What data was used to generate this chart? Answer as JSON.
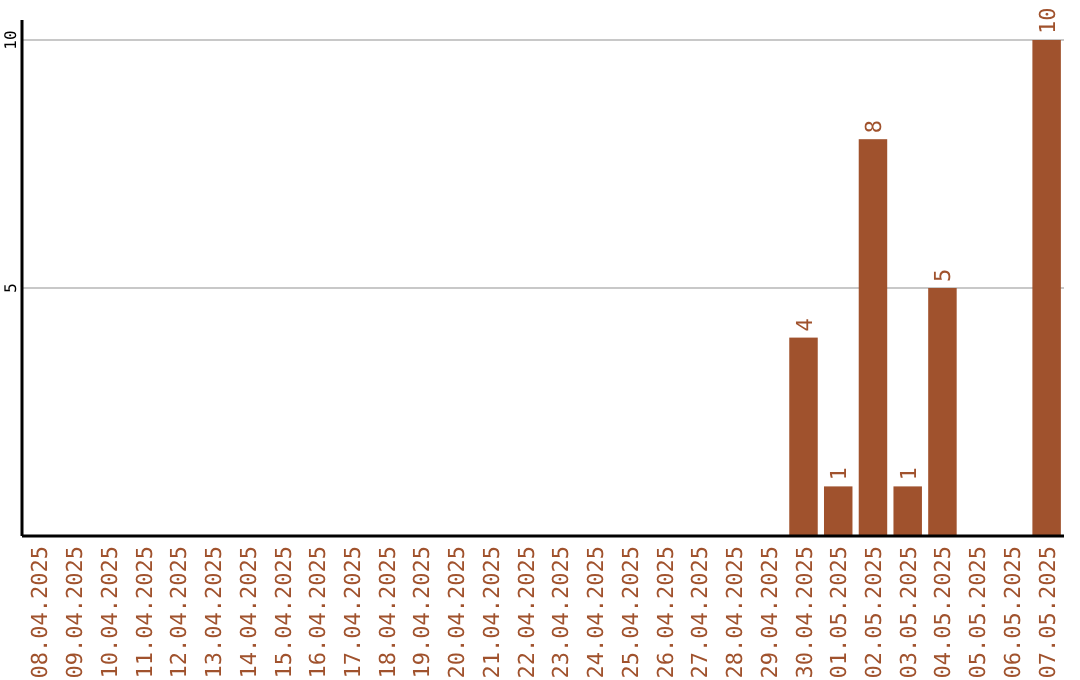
{
  "chart_data": {
    "type": "bar",
    "categories": [
      "08.04.2025",
      "09.04.2025",
      "10.04.2025",
      "11.04.2025",
      "12.04.2025",
      "13.04.2025",
      "14.04.2025",
      "15.04.2025",
      "16.04.2025",
      "17.04.2025",
      "18.04.2025",
      "19.04.2025",
      "20.04.2025",
      "21.04.2025",
      "22.04.2025",
      "23.04.2025",
      "24.04.2025",
      "25.04.2025",
      "26.04.2025",
      "27.04.2025",
      "28.04.2025",
      "29.04.2025",
      "30.04.2025",
      "01.05.2025",
      "02.05.2025",
      "03.05.2025",
      "04.05.2025",
      "05.05.2025",
      "06.05.2025",
      "07.05.2025"
    ],
    "values": [
      0,
      0,
      0,
      0,
      0,
      0,
      0,
      0,
      0,
      0,
      0,
      0,
      0,
      0,
      0,
      0,
      0,
      0,
      0,
      0,
      0,
      0,
      4,
      1,
      8,
      1,
      5,
      0,
      0,
      10
    ],
    "value_labels": [
      null,
      null,
      null,
      null,
      null,
      null,
      null,
      null,
      null,
      null,
      null,
      null,
      null,
      null,
      null,
      null,
      null,
      null,
      null,
      null,
      null,
      null,
      "4",
      "1",
      "8",
      "1",
      "5",
      null,
      null,
      "10"
    ],
    "color": "#a0522d",
    "ylim": [
      0,
      10
    ],
    "yticks": [
      5,
      10
    ],
    "grid": "y"
  }
}
